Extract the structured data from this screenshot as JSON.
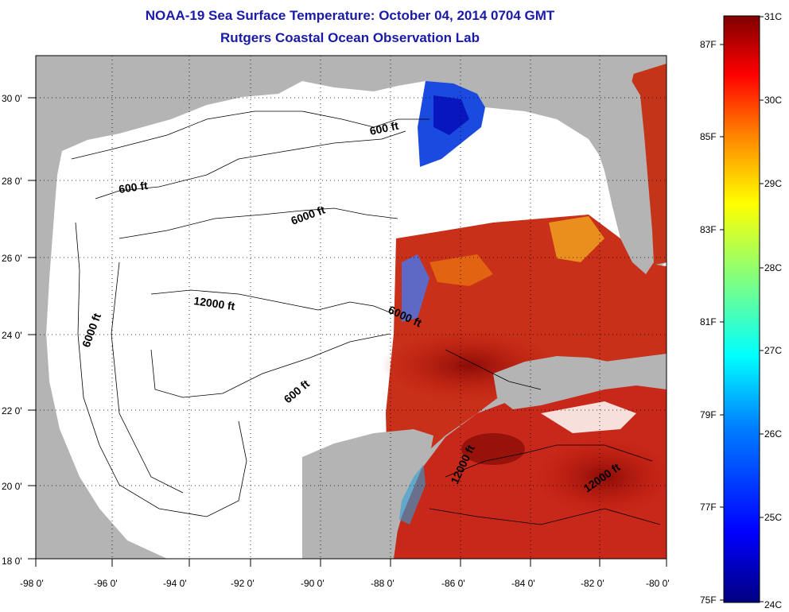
{
  "title": {
    "line1": "NOAA-19 Sea Surface Temperature:  October 04, 2014 0704 GMT",
    "line2": "Rutgers Coastal Ocean Observation Lab"
  },
  "map": {
    "lon_range": [
      -98,
      -80
    ],
    "lat_range": [
      18,
      31
    ],
    "x_tick_labels": [
      "-98 0'",
      "-96 0'",
      "-94 0'",
      "-92 0'",
      "-90 0'",
      "-88 0'",
      "-86 0'",
      "-84 0'",
      "-82 0'",
      "-80 0'"
    ],
    "y_tick_labels": [
      "18 0'",
      "20 0'",
      "22 0'",
      "24 0'",
      "26 0'",
      "28 0'",
      "30 0'"
    ],
    "grid": "dotted",
    "land_color": "#b4b4b4",
    "no_data_color": "#ffffff",
    "contour_labels": [
      "600 ft",
      "600 ft",
      "6000 ft",
      "6000 ft",
      "12000 ft",
      "6000 ft",
      "600 ft",
      "12000 ft",
      "12000 ft"
    ]
  },
  "colorbar": {
    "celsius_labels": [
      "31C",
      "30C",
      "29C",
      "28C",
      "27C",
      "26C",
      "25C",
      "24C"
    ],
    "fahrenheit_labels": [
      "87F",
      "85F",
      "83F",
      "81F",
      "79F",
      "77F",
      "75F"
    ],
    "colors": [
      "#000080",
      "#0000ff",
      "#0080ff",
      "#00ffff",
      "#80ff80",
      "#ffff00",
      "#ff8000",
      "#ff0000",
      "#800000"
    ]
  }
}
